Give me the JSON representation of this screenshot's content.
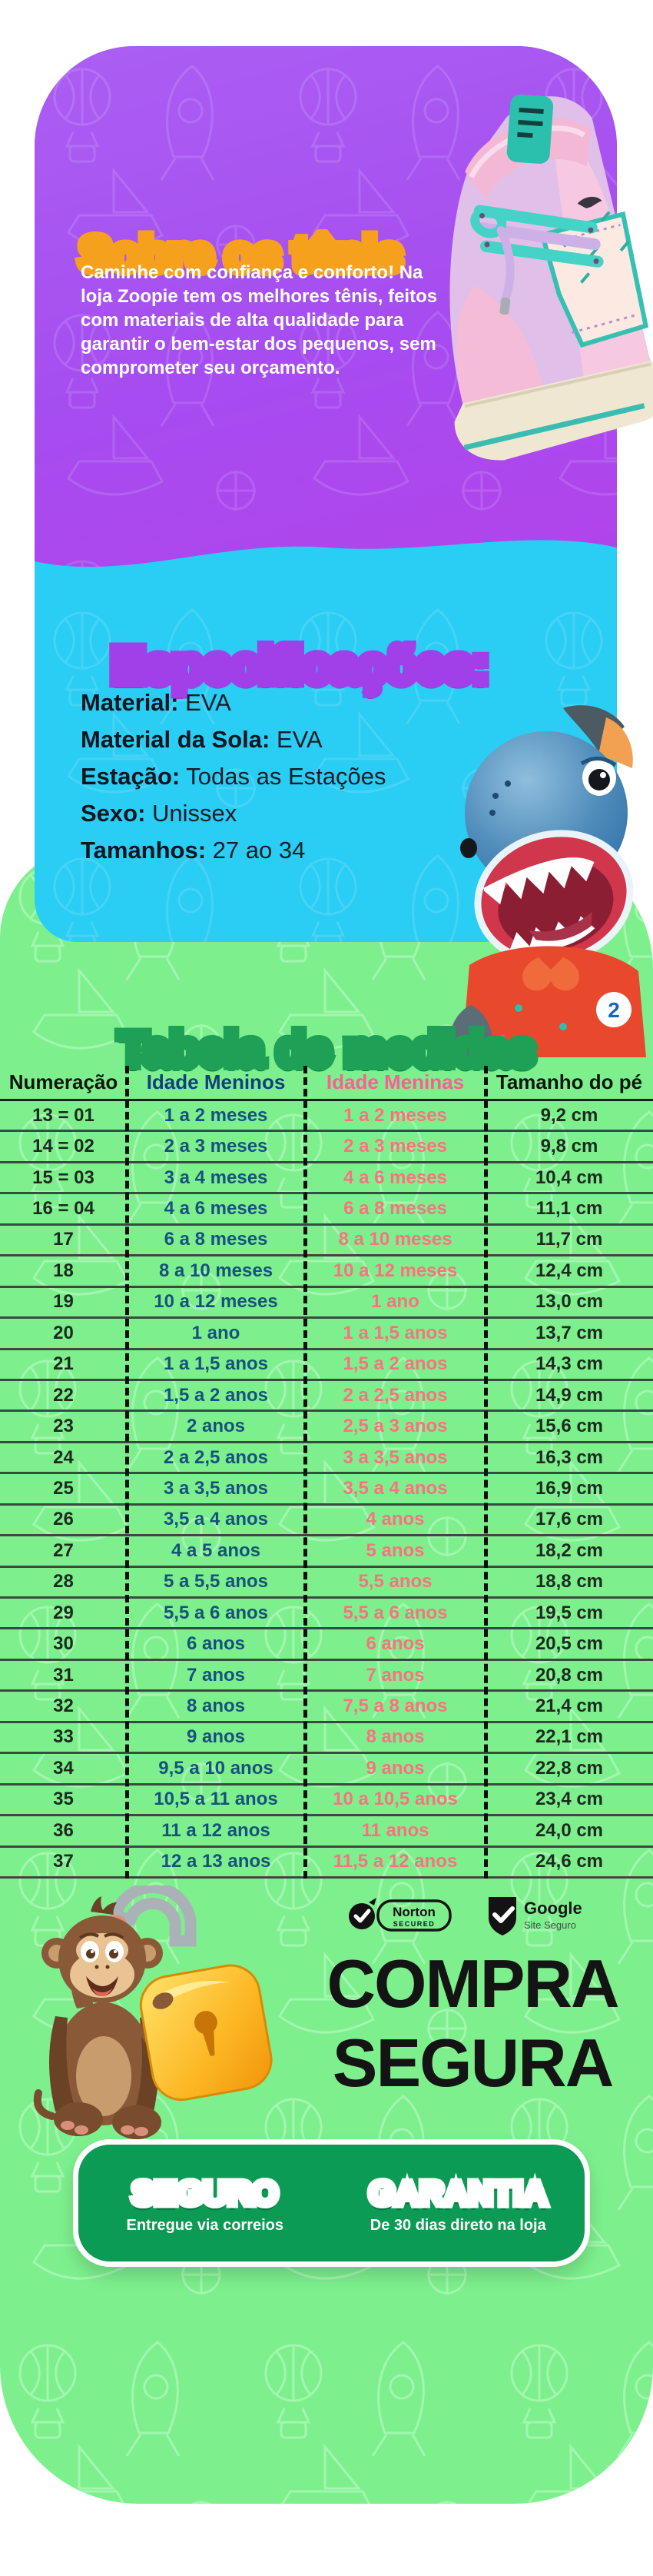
{
  "colors": {
    "purple_bg": "#a64cf0",
    "cyan_bg": "#2acdf4",
    "green_bg": "#7df08d",
    "box_green": "#0c9b55",
    "accent_orange": "#f6a11e",
    "table_header_blue": "#133e80",
    "table_header_pink": "#fb5e97",
    "table_cell_blue": "#17527d",
    "table_cell_pink": "#f8737f"
  },
  "hero": {
    "title": "Sobre os tênis",
    "description": {
      "part1": "Caminhe com confiança e conforto! Na loja ",
      "bold": "Zoopie",
      "part2": " tem os melhores tênis, feitos com materiais de alta qualidade para garantir o bem-estar dos pequenos, sem comprometer seu orçamento."
    }
  },
  "specs": {
    "title": "Especificações:",
    "items": [
      {
        "label": "Material:",
        "value": "EVA"
      },
      {
        "label": "Material da Sola:",
        "value": "EVA"
      },
      {
        "label": "Estação:",
        "value": "Todas as Estações"
      },
      {
        "label": "Sexo:",
        "value": "Unissex"
      },
      {
        "label": "Tamanhos:",
        "value": "27 ao 34"
      }
    ]
  },
  "size_table": {
    "title": "Tabela de medidas",
    "columns": [
      "Numeração",
      "Idade Meninos",
      "Idade Meninas",
      "Tamanho do pé"
    ],
    "rows": [
      [
        "13 = 01",
        "1 a 2 meses",
        "1 a 2 meses",
        "9,2 cm"
      ],
      [
        "14 = 02",
        "2 a 3 meses",
        "2 a 3 meses",
        "9,8 cm"
      ],
      [
        "15 = 03",
        "3 a 4 meses",
        "4 a 6 meses",
        "10,4 cm"
      ],
      [
        "16 = 04",
        "4 a 6 meses",
        "6 a 8 meses",
        "11,1 cm"
      ],
      [
        "17",
        "6 a 8 meses",
        "8 a 10 meses",
        "11,7 cm"
      ],
      [
        "18",
        "8 a 10 meses",
        "10 a 12 meses",
        "12,4 cm"
      ],
      [
        "19",
        "10 a 12 meses",
        "1 ano",
        "13,0 cm"
      ],
      [
        "20",
        "1 ano",
        "1 a 1,5 anos",
        "13,7 cm"
      ],
      [
        "21",
        "1 a 1,5 anos",
        "1,5 a 2 anos",
        "14,3 cm"
      ],
      [
        "22",
        "1,5 a 2 anos",
        "2 a 2,5 anos",
        "14,9 cm"
      ],
      [
        "23",
        "2 anos",
        "2,5 a 3 anos",
        "15,6 cm"
      ],
      [
        "24",
        "2 a 2,5 anos",
        "3 a 3,5 anos",
        "16,3 cm"
      ],
      [
        "25",
        "3 a 3,5 anos",
        "3,5 a 4 anos",
        "16,9 cm"
      ],
      [
        "26",
        "3,5 a 4 anos",
        "4 anos",
        "17,6 cm"
      ],
      [
        "27",
        "4 a 5 anos",
        "5 anos",
        "18,2 cm"
      ],
      [
        "28",
        "5 a 5,5 anos",
        "5,5 anos",
        "18,8 cm"
      ],
      [
        "29",
        "5,5 a 6 anos",
        "5,5 a 6 anos",
        "19,5 cm"
      ],
      [
        "30",
        "6 anos",
        "6 anos",
        "20,5 cm"
      ],
      [
        "31",
        "7 anos",
        "7 anos",
        "20,8 cm"
      ],
      [
        "32",
        "8 anos",
        "7,5 a 8 anos",
        "21,4 cm"
      ],
      [
        "33",
        "9 anos",
        "8 anos",
        "22,1 cm"
      ],
      [
        "34",
        "9,5 a 10 anos",
        "9 anos",
        "22,8 cm"
      ],
      [
        "35",
        "10,5 a 11 anos",
        "10 a 10,5 anos",
        "23,4 cm"
      ],
      [
        "36",
        "11 a 12 anos",
        "11 anos",
        "24,0 cm"
      ],
      [
        "37",
        "12 a 13 anos",
        "11,5 a 12 anos",
        "24,6 cm"
      ]
    ]
  },
  "characters": {
    "shark_badge": "2"
  },
  "trust": {
    "norton_line1": "Norton",
    "norton_line2": "SECURED",
    "google_line1": "Google",
    "google_line2": "Site Seguro",
    "headline_line1": "COMPRA",
    "headline_line2": "SEGURA"
  },
  "guarantee": {
    "left_title": "SEGURO",
    "left_subtitle": "Entregue via correios",
    "right_title": "GARANTIA",
    "right_subtitle": "De 30 dias direto na loja"
  }
}
